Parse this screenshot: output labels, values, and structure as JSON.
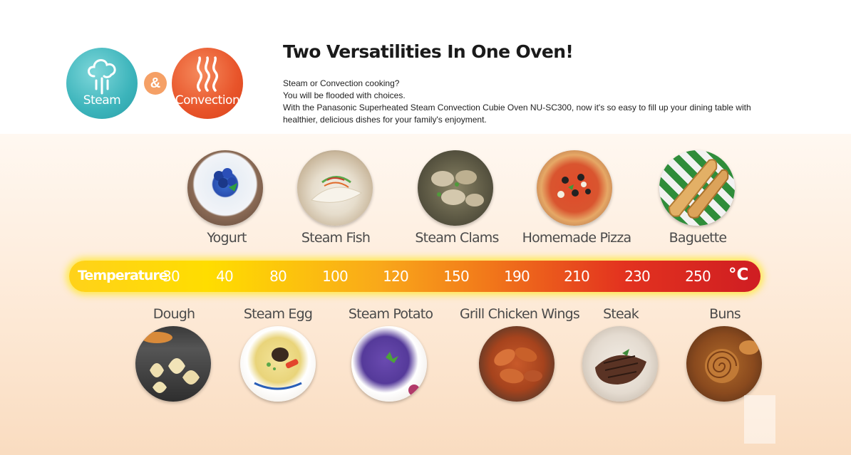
{
  "header": {
    "title": "Two Versatilities In One Oven!",
    "lines": [
      "Steam or Convection cooking?",
      "You will be flooded with choices.",
      "With the Panasonic Superheated Steam Convection Cubie Oven NU-SC300, now it's so easy to fill up your dining table with healthier, delicious dishes for your family's enjoyment."
    ]
  },
  "modes": {
    "steam": {
      "label": "Steam",
      "icon": "steam-cloud-icon",
      "color": "#3cb4bb"
    },
    "ampersand": "&",
    "convection": {
      "label": "Convection",
      "icon": "heat-waves-icon",
      "color": "#e8542a"
    }
  },
  "temperature": {
    "label": "Temperature",
    "unit": "°C",
    "values": [
      "30",
      "40",
      "80",
      "100",
      "120",
      "150",
      "190",
      "210",
      "230",
      "250"
    ]
  },
  "foods_top": [
    {
      "label": "Yogurt",
      "icon": "yogurt-blueberry-image"
    },
    {
      "label": "Steam Fish",
      "icon": "steam-fish-image"
    },
    {
      "label": "Steam Clams",
      "icon": "steam-clams-image"
    },
    {
      "label": "Homemade Pizza",
      "icon": "pizza-image"
    },
    {
      "label": "Baguette",
      "icon": "baguette-image"
    }
  ],
  "foods_bottom": [
    {
      "label": "Dough",
      "icon": "dough-image"
    },
    {
      "label": "Steam Egg",
      "icon": "steam-egg-image"
    },
    {
      "label": "Steam Potato",
      "icon": "purple-potato-image"
    },
    {
      "label": "Grill Chicken Wings",
      "icon": "chicken-wings-image"
    },
    {
      "label": "Steak",
      "icon": "steak-image"
    },
    {
      "label": "Buns",
      "icon": "buns-image"
    }
  ]
}
